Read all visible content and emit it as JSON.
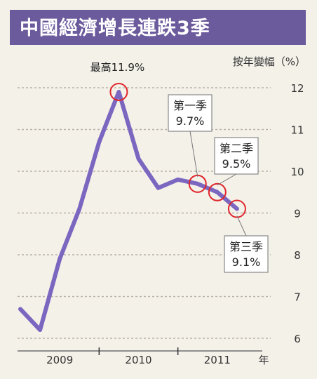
{
  "title": "中國經濟增長連跌3季",
  "colors": {
    "title_bg": "#6b5a9c",
    "line": "#7b66c0",
    "marker": "#e0262c",
    "grid": "#b9b2a8",
    "background": "#f4f1e9"
  },
  "chart_data": {
    "type": "line",
    "ylabel": "按年變幅（%）",
    "x_unit_label": "年",
    "ylim": [
      6,
      12
    ],
    "yticks": [
      "6",
      "7",
      "8",
      "9",
      "10",
      "11",
      "12"
    ],
    "xlim": [
      0,
      12
    ],
    "year_labels": [
      {
        "label": "2009",
        "x": 2.0
      },
      {
        "label": "2010",
        "x": 6.0
      },
      {
        "label": "2011",
        "x": 10.0
      }
    ],
    "year_separators": [
      4,
      8
    ],
    "series": [
      {
        "values": [
          {
            "x": 0,
            "y": 6.7
          },
          {
            "x": 1,
            "y": 6.2
          },
          {
            "x": 2,
            "y": 7.9
          },
          {
            "x": 3,
            "y": 9.1
          },
          {
            "x": 4,
            "y": 10.7
          },
          {
            "x": 5,
            "y": 11.9
          },
          {
            "x": 6,
            "y": 10.3
          },
          {
            "x": 7,
            "y": 9.6
          },
          {
            "x": 8,
            "y": 9.8
          },
          {
            "x": 9,
            "y": 9.7
          },
          {
            "x": 10,
            "y": 9.5
          },
          {
            "x": 11,
            "y": 9.1
          }
        ]
      }
    ],
    "annotations": [
      {
        "x": 5,
        "y": 11.9,
        "text": "最高11.9%",
        "style": "label"
      },
      {
        "x": 9,
        "y": 9.7,
        "line1": "第一季",
        "line2": "9.7%",
        "style": "box"
      },
      {
        "x": 10,
        "y": 9.5,
        "line1": "第二季",
        "line2": "9.5%",
        "style": "box"
      },
      {
        "x": 11,
        "y": 9.1,
        "line1": "第三季",
        "line2": "9.1%",
        "style": "box"
      }
    ]
  }
}
